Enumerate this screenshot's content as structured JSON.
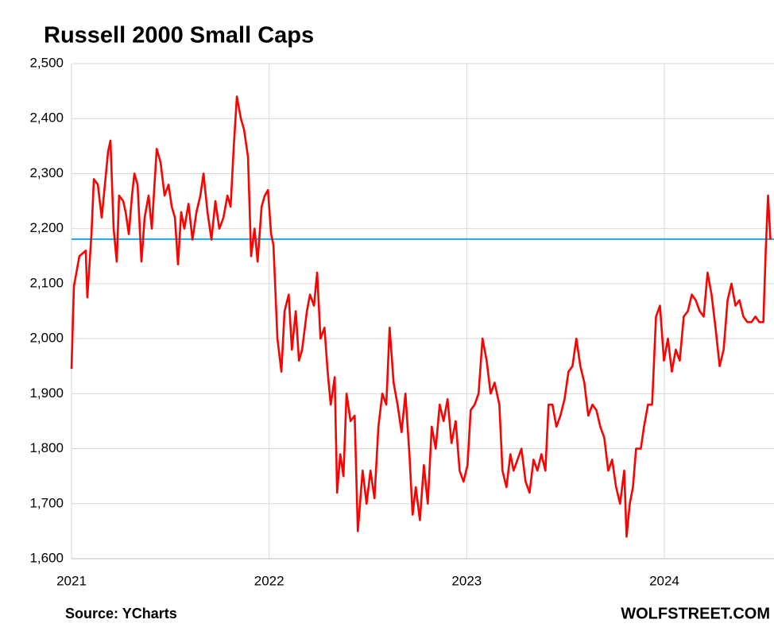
{
  "chart_data": {
    "type": "line",
    "title": "Russell 2000 Small Caps",
    "source": "Source: YCharts",
    "brand": "WOLFSTREET.COM",
    "xlim": [
      2021,
      2024.555
    ],
    "xticks": [
      2021,
      2022,
      2023,
      2024
    ],
    "ylim": [
      1600,
      2500
    ],
    "yticks": [
      {
        "value": 1600,
        "label": "1,600"
      },
      {
        "value": 1700,
        "label": "1,700"
      },
      {
        "value": 1800,
        "label": "1,800"
      },
      {
        "value": 1900,
        "label": "1,900"
      },
      {
        "value": 2000,
        "label": "2,000"
      },
      {
        "value": 2100,
        "label": "2,100"
      },
      {
        "value": 2200,
        "label": "2,200"
      },
      {
        "value": 2300,
        "label": "2,300"
      },
      {
        "value": 2400,
        "label": "2,400"
      },
      {
        "value": 2500,
        "label": "2,500"
      }
    ],
    "grid": true,
    "reference_line": {
      "value": 2181,
      "color": "#1ea7e1"
    },
    "series": [
      {
        "color": "#ff0000",
        "x": [
          2021.0,
          2021.012,
          2021.04,
          2021.072,
          2021.08,
          2021.101,
          2021.113,
          2021.133,
          2021.153,
          2021.169,
          2021.185,
          2021.197,
          2021.213,
          2021.229,
          2021.241,
          2021.262,
          2021.274,
          2021.29,
          2021.306,
          2021.318,
          2021.334,
          2021.354,
          2021.37,
          2021.39,
          2021.406,
          2021.431,
          2021.451,
          2021.471,
          2021.491,
          2021.507,
          2021.523,
          2021.539,
          2021.555,
          2021.571,
          2021.592,
          2021.612,
          2021.632,
          2021.652,
          2021.668,
          2021.688,
          2021.708,
          2021.728,
          2021.748,
          2021.769,
          2021.789,
          2021.805,
          2021.821,
          2021.837,
          2021.857,
          2021.873,
          2021.893,
          2021.909,
          2021.926,
          2021.942,
          2021.962,
          2021.978,
          2021.994,
          2022.01,
          2022.022,
          2022.042,
          2022.062,
          2022.078,
          2022.099,
          2022.115,
          2022.135,
          2022.151,
          2022.167,
          2022.191,
          2022.207,
          2022.227,
          2022.243,
          2022.26,
          2022.28,
          2022.296,
          2022.312,
          2022.332,
          2022.344,
          2022.36,
          2022.376,
          2022.392,
          2022.412,
          2022.433,
          2022.449,
          2022.473,
          2022.493,
          2022.513,
          2022.533,
          2022.553,
          2022.573,
          2022.593,
          2022.61,
          2022.63,
          2022.65,
          2022.67,
          2022.69,
          2022.71,
          2022.726,
          2022.742,
          2022.763,
          2022.783,
          2022.803,
          2022.823,
          2022.843,
          2022.863,
          2022.883,
          2022.903,
          2022.923,
          2022.944,
          2022.964,
          2022.984,
          2023.004,
          2023.02,
          2023.04,
          2023.06,
          2023.08,
          2023.101,
          2023.121,
          2023.141,
          2023.165,
          2023.181,
          2023.201,
          2023.221,
          2023.237,
          2023.257,
          2023.277,
          2023.298,
          2023.318,
          2023.338,
          2023.358,
          2023.378,
          2023.398,
          2023.414,
          2023.434,
          2023.454,
          2023.474,
          2023.495,
          2023.515,
          2023.535,
          2023.555,
          2023.575,
          2023.595,
          2023.615,
          2023.636,
          2023.656,
          2023.676,
          2023.696,
          2023.716,
          2023.736,
          2023.756,
          2023.776,
          2023.797,
          2023.809,
          2023.825,
          2023.841,
          2023.857,
          2023.881,
          2023.897,
          2023.917,
          2023.938,
          2023.958,
          2023.978,
          2023.998,
          2024.018,
          2024.038,
          2024.058,
          2024.078,
          2024.098,
          2024.119,
          2024.139,
          2024.159,
          2024.179,
          2024.199,
          2024.219,
          2024.239,
          2024.259,
          2024.28,
          2024.3,
          2024.32,
          2024.34,
          2024.36,
          2024.38,
          2024.4,
          2024.42,
          2024.441,
          2024.461,
          2024.481,
          2024.501,
          2024.513,
          2024.525,
          2024.537
        ],
        "values": [
          1945,
          2095,
          2150,
          2160,
          2075,
          2190,
          2290,
          2280,
          2220,
          2280,
          2340,
          2360,
          2200,
          2140,
          2260,
          2250,
          2230,
          2190,
          2260,
          2300,
          2280,
          2140,
          2220,
          2260,
          2200,
          2345,
          2320,
          2260,
          2280,
          2240,
          2220,
          2135,
          2230,
          2200,
          2245,
          2180,
          2230,
          2260,
          2300,
          2230,
          2180,
          2250,
          2200,
          2220,
          2260,
          2240,
          2350,
          2440,
          2400,
          2380,
          2330,
          2150,
          2200,
          2140,
          2240,
          2260,
          2270,
          2190,
          2170,
          2000,
          1940,
          2050,
          2080,
          1980,
          2050,
          1960,
          1980,
          2050,
          2080,
          2060,
          2120,
          2000,
          2020,
          1940,
          1880,
          1930,
          1720,
          1790,
          1750,
          1900,
          1850,
          1860,
          1650,
          1760,
          1700,
          1760,
          1710,
          1840,
          1900,
          1880,
          2020,
          1920,
          1880,
          1830,
          1900,
          1790,
          1680,
          1730,
          1670,
          1770,
          1700,
          1840,
          1800,
          1880,
          1850,
          1890,
          1810,
          1850,
          1760,
          1740,
          1770,
          1870,
          1880,
          1900,
          2000,
          1960,
          1900,
          1920,
          1880,
          1760,
          1730,
          1790,
          1760,
          1780,
          1800,
          1740,
          1720,
          1780,
          1760,
          1790,
          1760,
          1880,
          1880,
          1840,
          1860,
          1890,
          1940,
          1950,
          2000,
          1950,
          1920,
          1860,
          1880,
          1870,
          1840,
          1820,
          1760,
          1780,
          1730,
          1700,
          1760,
          1640,
          1700,
          1730,
          1800,
          1800,
          1840,
          1880,
          1880,
          2040,
          2060,
          1960,
          2000,
          1940,
          1980,
          1960,
          2040,
          2050,
          2080,
          2070,
          2050,
          2040,
          2120,
          2080,
          2020,
          1950,
          1980,
          2070,
          2100,
          2060,
          2070,
          2040,
          2030,
          2030,
          2040,
          2030,
          2030,
          2160,
          2260,
          2180
        ]
      }
    ]
  }
}
